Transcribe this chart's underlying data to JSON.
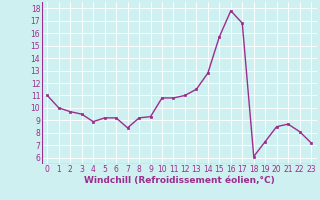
{
  "x": [
    0,
    1,
    2,
    3,
    4,
    5,
    6,
    7,
    8,
    9,
    10,
    11,
    12,
    13,
    14,
    15,
    16,
    17,
    18,
    19,
    20,
    21,
    22,
    23
  ],
  "y": [
    11,
    10,
    9.7,
    9.5,
    8.9,
    9.2,
    9.2,
    8.4,
    9.2,
    9.3,
    10.8,
    10.8,
    11,
    11.5,
    12.8,
    15.7,
    17.8,
    16.8,
    6.1,
    7.3,
    8.5,
    8.7,
    8.1,
    7.2
  ],
  "line_color": "#9b2d8e",
  "marker": "s",
  "markersize": 2.0,
  "linewidth": 1.0,
  "bg_color": "#cff0f0",
  "grid_color": "#ffffff",
  "xlabel": "Windchill (Refroidissement éolien,°C)",
  "xlabel_fontsize": 6.5,
  "tick_fontsize": 5.5,
  "ylim": [
    5.5,
    18.5
  ],
  "xlim": [
    -0.5,
    23.5
  ],
  "yticks": [
    6,
    7,
    8,
    9,
    10,
    11,
    12,
    13,
    14,
    15,
    16,
    17,
    18
  ],
  "xticks": [
    0,
    1,
    2,
    3,
    4,
    5,
    6,
    7,
    8,
    9,
    10,
    11,
    12,
    13,
    14,
    15,
    16,
    17,
    18,
    19,
    20,
    21,
    22,
    23
  ]
}
